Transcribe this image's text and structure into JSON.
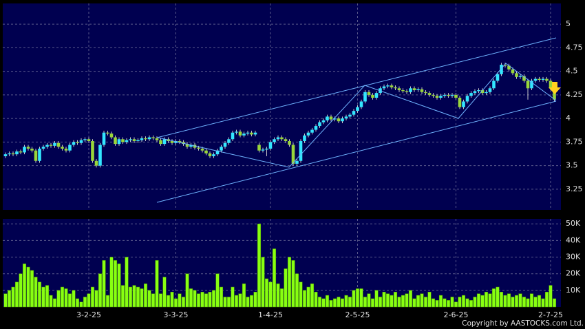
{
  "chart_data": {
    "type": "candlestick",
    "categories": [
      null,
      null,
      null,
      null,
      null,
      null,
      null,
      null,
      null,
      null,
      null,
      null,
      null,
      null,
      null,
      null,
      null,
      null,
      null,
      null,
      null,
      null,
      "3-2-25",
      null,
      null,
      null,
      null,
      null,
      null,
      null,
      null,
      null,
      null,
      null,
      null,
      null,
      null,
      null,
      null,
      null,
      null,
      null,
      null,
      null,
      null,
      "3-3-25",
      null,
      null,
      null,
      null,
      null,
      null,
      null,
      null,
      null,
      null,
      null,
      null,
      null,
      null,
      null,
      null,
      null,
      null,
      null,
      null,
      null,
      null,
      null,
      null,
      "1-4-25",
      null,
      null,
      null,
      null,
      null,
      null,
      null,
      null,
      null,
      null,
      null,
      null,
      null,
      null,
      null,
      null,
      null,
      null,
      null,
      null,
      null,
      null,
      "2-5-25",
      null,
      null,
      null,
      null,
      null,
      null,
      null,
      null,
      null,
      null,
      null,
      null,
      null,
      null,
      null,
      null,
      null,
      null,
      null,
      null,
      null,
      null,
      null,
      null,
      null,
      "2-6-25",
      null,
      null,
      null,
      null,
      null,
      null,
      null,
      null,
      null,
      null,
      null,
      null,
      null,
      null,
      null,
      null,
      null,
      null,
      null,
      null,
      null,
      null,
      null,
      null,
      "2-7-25"
    ],
    "ohlc": [
      [
        3.6,
        3.64,
        3.58,
        3.62
      ],
      [
        3.62,
        3.65,
        3.6,
        3.63
      ],
      [
        3.63,
        3.65,
        3.6,
        3.62
      ],
      [
        3.62,
        3.67,
        3.6,
        3.65
      ],
      [
        3.65,
        3.67,
        3.62,
        3.64
      ],
      [
        3.64,
        3.72,
        3.62,
        3.7
      ],
      [
        3.7,
        3.72,
        3.66,
        3.68
      ],
      [
        3.68,
        3.7,
        3.64,
        3.66
      ],
      [
        3.66,
        3.68,
        3.53,
        3.55
      ],
      [
        3.55,
        3.7,
        3.53,
        3.68
      ],
      [
        3.68,
        3.72,
        3.66,
        3.7
      ],
      [
        3.7,
        3.74,
        3.68,
        3.72
      ],
      [
        3.72,
        3.74,
        3.69,
        3.71
      ],
      [
        3.71,
        3.76,
        3.69,
        3.74
      ],
      [
        3.74,
        3.76,
        3.68,
        3.7
      ],
      [
        3.7,
        3.72,
        3.66,
        3.68
      ],
      [
        3.68,
        3.7,
        3.64,
        3.66
      ],
      [
        3.66,
        3.74,
        3.64,
        3.72
      ],
      [
        3.72,
        3.77,
        3.7,
        3.75
      ],
      [
        3.75,
        3.77,
        3.72,
        3.74
      ],
      [
        3.74,
        3.79,
        3.72,
        3.77
      ],
      [
        3.77,
        3.8,
        3.75,
        3.78
      ],
      [
        3.78,
        3.8,
        3.74,
        3.76
      ],
      [
        3.76,
        3.78,
        3.53,
        3.55
      ],
      [
        3.55,
        3.57,
        3.48,
        3.5
      ],
      [
        3.5,
        3.74,
        3.48,
        3.72
      ],
      [
        3.72,
        3.87,
        3.7,
        3.85
      ],
      [
        3.85,
        3.87,
        3.82,
        3.84
      ],
      [
        3.84,
        3.86,
        3.78,
        3.8
      ],
      [
        3.8,
        3.82,
        3.71,
        3.73
      ],
      [
        3.73,
        3.8,
        3.71,
        3.78
      ],
      [
        3.78,
        3.8,
        3.73,
        3.75
      ],
      [
        3.75,
        3.79,
        3.73,
        3.77
      ],
      [
        3.77,
        3.8,
        3.75,
        3.78
      ],
      [
        3.78,
        3.8,
        3.74,
        3.76
      ],
      [
        3.76,
        3.79,
        3.74,
        3.77
      ],
      [
        3.77,
        3.81,
        3.75,
        3.79
      ],
      [
        3.79,
        3.81,
        3.76,
        3.78
      ],
      [
        3.78,
        3.82,
        3.76,
        3.8
      ],
      [
        3.8,
        3.82,
        3.77,
        3.79
      ],
      [
        3.79,
        3.81,
        3.75,
        3.77
      ],
      [
        3.77,
        3.79,
        3.71,
        3.73
      ],
      [
        3.73,
        3.8,
        3.71,
        3.78
      ],
      [
        3.78,
        3.8,
        3.74,
        3.76
      ],
      [
        3.76,
        3.78,
        3.72,
        3.74
      ],
      [
        3.74,
        3.78,
        3.72,
        3.76
      ],
      [
        3.76,
        3.78,
        3.73,
        3.75
      ],
      [
        3.75,
        3.77,
        3.71,
        3.73
      ],
      [
        3.73,
        3.75,
        3.68,
        3.7
      ],
      [
        3.7,
        3.74,
        3.68,
        3.72
      ],
      [
        3.72,
        3.74,
        3.67,
        3.69
      ],
      [
        3.69,
        3.71,
        3.66,
        3.68
      ],
      [
        3.68,
        3.7,
        3.64,
        3.66
      ],
      [
        3.66,
        3.68,
        3.61,
        3.63
      ],
      [
        3.63,
        3.65,
        3.58,
        3.6
      ],
      [
        3.6,
        3.64,
        3.58,
        3.62
      ],
      [
        3.62,
        3.68,
        3.6,
        3.66
      ],
      [
        3.66,
        3.72,
        3.64,
        3.7
      ],
      [
        3.7,
        3.76,
        3.68,
        3.74
      ],
      [
        3.74,
        3.8,
        3.72,
        3.78
      ],
      [
        3.78,
        3.87,
        3.76,
        3.85
      ],
      [
        3.85,
        3.88,
        3.83,
        3.86
      ],
      [
        3.86,
        3.88,
        3.8,
        3.82
      ],
      [
        3.82,
        3.86,
        3.8,
        3.84
      ],
      [
        3.84,
        3.87,
        3.82,
        3.85
      ],
      [
        3.85,
        3.87,
        3.81,
        3.83
      ],
      [
        3.83,
        3.87,
        3.81,
        3.85
      ],
      [
        3.72,
        3.74,
        3.64,
        3.66
      ],
      [
        3.66,
        3.69,
        3.64,
        3.67
      ],
      [
        3.67,
        3.7,
        3.6,
        3.68
      ],
      [
        3.68,
        3.77,
        3.66,
        3.75
      ],
      [
        3.75,
        3.8,
        3.73,
        3.78
      ],
      [
        3.78,
        3.82,
        3.76,
        3.8
      ],
      [
        3.8,
        3.82,
        3.76,
        3.78
      ],
      [
        3.78,
        3.8,
        3.74,
        3.76
      ],
      [
        3.76,
        3.78,
        3.7,
        3.72
      ],
      [
        3.72,
        3.74,
        3.5,
        3.52
      ],
      [
        3.52,
        3.57,
        3.5,
        3.55
      ],
      [
        3.55,
        3.78,
        3.53,
        3.76
      ],
      [
        3.76,
        3.84,
        3.74,
        3.82
      ],
      [
        3.82,
        3.87,
        3.8,
        3.85
      ],
      [
        3.85,
        3.9,
        3.83,
        3.88
      ],
      [
        3.88,
        3.94,
        3.86,
        3.92
      ],
      [
        3.92,
        3.98,
        3.9,
        3.96
      ],
      [
        3.96,
        4.0,
        3.94,
        3.98
      ],
      [
        3.98,
        4.04,
        3.96,
        4.02
      ],
      [
        4.02,
        4.04,
        3.97,
        3.99
      ],
      [
        3.99,
        4.02,
        3.97,
        4.0
      ],
      [
        4.0,
        4.02,
        3.95,
        3.97
      ],
      [
        3.97,
        4.02,
        3.95,
        4.0
      ],
      [
        4.0,
        4.04,
        3.98,
        4.02
      ],
      [
        4.02,
        4.06,
        4.0,
        4.04
      ],
      [
        4.04,
        4.1,
        4.02,
        4.08
      ],
      [
        4.08,
        4.14,
        4.06,
        4.12
      ],
      [
        4.12,
        4.2,
        4.1,
        4.18
      ],
      [
        4.18,
        4.3,
        4.16,
        4.28
      ],
      [
        4.28,
        4.3,
        4.23,
        4.25
      ],
      [
        4.25,
        4.27,
        4.2,
        4.22
      ],
      [
        4.22,
        4.29,
        4.2,
        4.27
      ],
      [
        4.27,
        4.34,
        4.25,
        4.32
      ],
      [
        4.32,
        4.36,
        4.3,
        4.34
      ],
      [
        4.34,
        4.37,
        4.32,
        4.35
      ],
      [
        4.35,
        4.37,
        4.31,
        4.33
      ],
      [
        4.33,
        4.35,
        4.3,
        4.32
      ],
      [
        4.32,
        4.34,
        4.28,
        4.3
      ],
      [
        4.3,
        4.32,
        4.27,
        4.29
      ],
      [
        4.29,
        4.31,
        4.26,
        4.28
      ],
      [
        4.28,
        4.34,
        4.26,
        4.32
      ],
      [
        4.32,
        4.34,
        4.28,
        4.3
      ],
      [
        4.3,
        4.33,
        4.28,
        4.31
      ],
      [
        4.31,
        4.33,
        4.26,
        4.28
      ],
      [
        4.28,
        4.3,
        4.25,
        4.27
      ],
      [
        4.27,
        4.29,
        4.23,
        4.25
      ],
      [
        4.25,
        4.27,
        4.22,
        4.24
      ],
      [
        4.24,
        4.26,
        4.2,
        4.22
      ],
      [
        4.22,
        4.26,
        4.2,
        4.24
      ],
      [
        4.24,
        4.27,
        4.22,
        4.25
      ],
      [
        4.25,
        4.27,
        4.22,
        4.24
      ],
      [
        4.24,
        4.27,
        4.22,
        4.25
      ],
      [
        4.25,
        4.27,
        4.2,
        4.22
      ],
      [
        4.22,
        4.24,
        4.1,
        4.12
      ],
      [
        4.12,
        4.2,
        4.1,
        4.18
      ],
      [
        4.18,
        4.26,
        4.16,
        4.24
      ],
      [
        4.24,
        4.29,
        4.22,
        4.27
      ],
      [
        4.27,
        4.31,
        4.25,
        4.29
      ],
      [
        4.29,
        4.32,
        4.27,
        4.3
      ],
      [
        4.3,
        4.32,
        4.25,
        4.27
      ],
      [
        4.27,
        4.3,
        4.25,
        4.28
      ],
      [
        4.28,
        4.34,
        4.26,
        4.32
      ],
      [
        4.32,
        4.42,
        4.3,
        4.4
      ],
      [
        4.4,
        4.49,
        4.38,
        4.47
      ],
      [
        4.47,
        4.59,
        4.45,
        4.57
      ],
      [
        4.57,
        4.59,
        4.54,
        4.56
      ],
      [
        4.56,
        4.58,
        4.5,
        4.52
      ],
      [
        4.52,
        4.54,
        4.46,
        4.48
      ],
      [
        4.48,
        4.5,
        4.42,
        4.44
      ],
      [
        4.44,
        4.47,
        4.42,
        4.45
      ],
      [
        4.45,
        4.47,
        4.38,
        4.4
      ],
      [
        4.4,
        4.42,
        4.2,
        4.32
      ],
      [
        4.32,
        4.42,
        4.3,
        4.4
      ],
      [
        4.4,
        4.44,
        4.38,
        4.42
      ],
      [
        4.42,
        4.44,
        4.39,
        4.41
      ],
      [
        4.41,
        4.44,
        4.39,
        4.42
      ],
      [
        4.42,
        4.44,
        4.38,
        4.4
      ],
      [
        4.4,
        4.42,
        4.3,
        4.32
      ],
      [
        4.32,
        4.34,
        4.18,
        4.2
      ]
    ],
    "up_color": "#33e6ff",
    "down_color": "#99d63a",
    "ylim": [
      3.03,
      5.22
    ],
    "yticks": [
      3.25,
      3.5,
      3.75,
      4,
      4.25,
      4.5,
      4.75,
      5
    ],
    "grid": true,
    "volume": {
      "color": "#88ff11",
      "values": [
        8000,
        10000,
        12000,
        15000,
        20000,
        26000,
        24000,
        22000,
        18000,
        15000,
        12000,
        13000,
        7000,
        5000,
        10000,
        12000,
        11000,
        8000,
        10000,
        5000,
        3000,
        6000,
        8000,
        12000,
        10000,
        20000,
        28000,
        7000,
        30000,
        28000,
        26000,
        13000,
        30000,
        12000,
        13000,
        12000,
        11000,
        14000,
        10000,
        8000,
        28000,
        8000,
        18000,
        7000,
        9000,
        5000,
        8000,
        6000,
        20000,
        11000,
        10000,
        8000,
        9000,
        8000,
        9000,
        10000,
        20000,
        12000,
        6000,
        6000,
        12000,
        7000,
        8000,
        14000,
        6000,
        7000,
        9000,
        50000,
        30000,
        17000,
        15000,
        35000,
        14000,
        11000,
        23000,
        30000,
        28000,
        20000,
        15000,
        10000,
        12000,
        14000,
        9000,
        6000,
        5000,
        7000,
        4000,
        5000,
        6000,
        5000,
        7000,
        6000,
        10000,
        11000,
        11000,
        6000,
        8000,
        5000,
        10000,
        6000,
        9000,
        8000,
        7000,
        9000,
        6000,
        7000,
        8000,
        10000,
        5000,
        7000,
        8000,
        6000,
        9000,
        5000,
        4000,
        7000,
        5000,
        4000,
        6000,
        3000,
        6000,
        7000,
        5000,
        4000,
        6000,
        8000,
        7000,
        9000,
        8000,
        11000,
        12000,
        9000,
        7000,
        8000,
        6000,
        7000,
        8000,
        6000,
        5000,
        8000,
        6000,
        7000,
        5000,
        9000,
        13000,
        5000
      ],
      "ylim": [
        0,
        53000
      ],
      "yticks": [
        {
          "value": 10000,
          "label": "10K"
        },
        {
          "value": 20000,
          "label": "20K"
        },
        {
          "value": 30000,
          "label": "30K"
        },
        {
          "value": 40000,
          "label": "40K"
        },
        {
          "value": 50000,
          "label": "50K"
        }
      ]
    },
    "copyright": "Copyright by AASTOCKS.com Ltd."
  }
}
